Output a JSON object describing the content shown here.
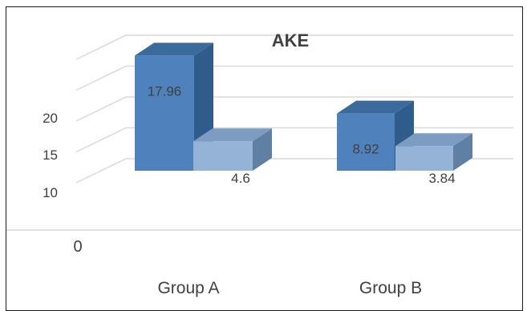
{
  "chart_data": {
    "type": "bar",
    "title": "AKE",
    "categories": [
      "Group A",
      "Group B"
    ],
    "series": [
      {
        "values": [
          17.96,
          8.92
        ]
      },
      {
        "values": [
          4.6,
          3.84
        ]
      }
    ],
    "y_tick_labels": [
      "10",
      "15",
      "20"
    ],
    "floor_label": "0",
    "xlabel": "",
    "ylabel": "",
    "grid": true,
    "colors": {
      "series_0_front": "#4f81bd",
      "series_0_top": "#3b6a9c",
      "series_0_side": "#2f5c8a",
      "series_1_front": "#95b3d7",
      "series_1_top": "#7d9cc2",
      "series_1_side": "#5f7fa3",
      "grid": "#d9d9d9",
      "text": "#404040"
    }
  }
}
